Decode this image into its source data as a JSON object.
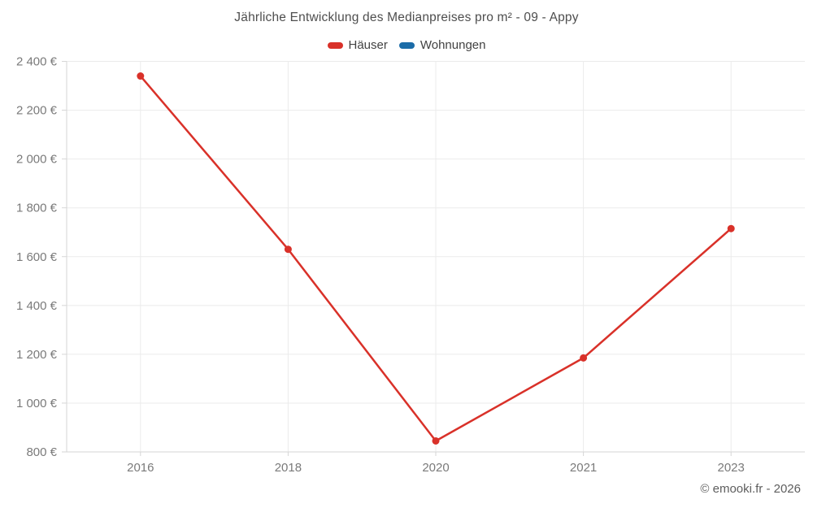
{
  "title": "Jährliche Entwicklung des Medianpreises pro m² - 09 - Appy",
  "footer": {
    "copyright": "© emooki.fr - 2026"
  },
  "colors": {
    "haeuser": "#d93129",
    "wohnungen": "#1b6ca8",
    "grid": "#ebebeb",
    "axis": "#d6d6d6",
    "tick_text": "#7a7a7a",
    "title_text": "#4e4e4e"
  },
  "chart_data": {
    "type": "line",
    "title": "Jährliche Entwicklung des Medianpreises pro m² - 09 - Appy",
    "categories": [
      "2016",
      "2018",
      "2020",
      "2021",
      "2023"
    ],
    "series": [
      {
        "name": "Häuser",
        "color": "#d93129",
        "values": [
          2340,
          1630,
          845,
          1185,
          1715
        ]
      },
      {
        "name": "Wohnungen",
        "color": "#1b6ca8",
        "values": []
      }
    ],
    "xlabel": "",
    "ylabel": "",
    "ylim": [
      800,
      2400
    ],
    "ytick_step": 200,
    "ytick_suffix": " €",
    "grid": true,
    "legend_position": "top"
  }
}
